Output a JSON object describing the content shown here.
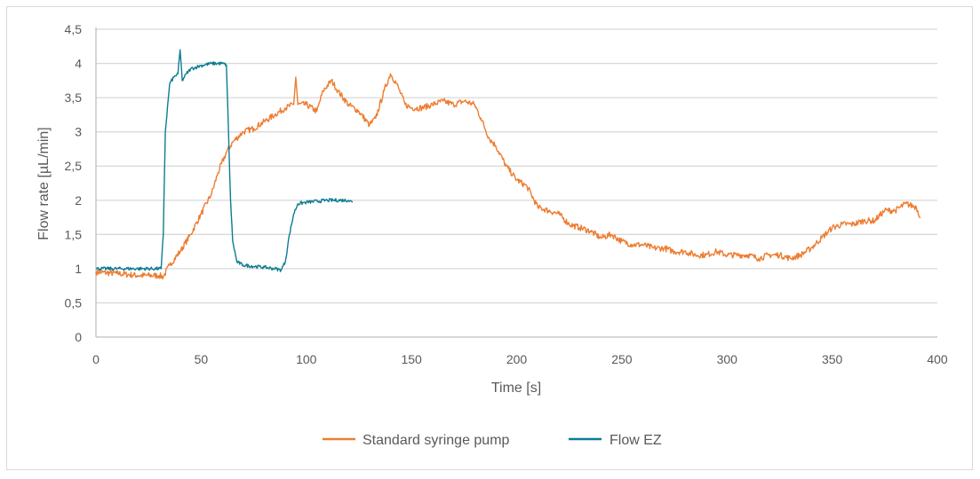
{
  "chart_data": {
    "type": "line",
    "title": "",
    "xlabel": "Time [s]",
    "ylabel": "Flow rate [µL/min]",
    "xlim": [
      0,
      400
    ],
    "ylim": [
      0,
      4.5
    ],
    "xticks": [
      "0",
      "50",
      "100",
      "150",
      "200",
      "250",
      "300",
      "350",
      "400"
    ],
    "yticks": [
      "0",
      "0,5",
      "1",
      "1,5",
      "2",
      "2,5",
      "3",
      "3,5",
      "4",
      "4,5"
    ],
    "grid": "horizontal",
    "legend": "bottom",
    "series": [
      {
        "name": "Standard syringe pump",
        "color": "#ED7D31",
        "x": [
          0,
          10,
          20,
          30,
          32,
          35,
          40,
          45,
          50,
          55,
          58,
          62,
          65,
          70,
          75,
          80,
          85,
          90,
          94,
          95,
          96,
          100,
          105,
          108,
          112,
          115,
          120,
          125,
          130,
          133,
          137,
          140,
          143,
          147,
          150,
          155,
          160,
          165,
          170,
          175,
          180,
          183,
          187,
          190,
          195,
          200,
          205,
          210,
          215,
          220,
          225,
          230,
          235,
          240,
          245,
          250,
          255,
          260,
          265,
          270,
          275,
          280,
          285,
          290,
          295,
          300,
          305,
          310,
          315,
          320,
          325,
          330,
          335,
          340,
          345,
          350,
          355,
          360,
          365,
          370,
          375,
          380,
          385,
          390,
          392
        ],
        "y": [
          0.95,
          0.93,
          0.9,
          0.9,
          0.88,
          1.05,
          1.25,
          1.5,
          1.8,
          2.1,
          2.4,
          2.7,
          2.85,
          3.0,
          3.05,
          3.15,
          3.25,
          3.35,
          3.4,
          3.8,
          3.4,
          3.4,
          3.3,
          3.6,
          3.75,
          3.6,
          3.4,
          3.3,
          3.1,
          3.2,
          3.6,
          3.85,
          3.7,
          3.4,
          3.35,
          3.35,
          3.4,
          3.45,
          3.4,
          3.45,
          3.4,
          3.2,
          2.9,
          2.8,
          2.5,
          2.3,
          2.2,
          1.9,
          1.85,
          1.8,
          1.65,
          1.6,
          1.55,
          1.45,
          1.5,
          1.4,
          1.35,
          1.35,
          1.3,
          1.3,
          1.25,
          1.25,
          1.2,
          1.2,
          1.25,
          1.2,
          1.2,
          1.2,
          1.15,
          1.2,
          1.2,
          1.15,
          1.2,
          1.3,
          1.45,
          1.6,
          1.65,
          1.65,
          1.7,
          1.7,
          1.85,
          1.85,
          1.95,
          1.9,
          1.75
        ]
      },
      {
        "name": "Flow EZ",
        "color": "#0E7C93",
        "x": [
          0,
          10,
          20,
          31,
          32,
          33,
          35,
          37,
          39,
          40,
          41,
          43,
          45,
          50,
          55,
          60,
          62,
          63,
          64,
          65,
          67,
          70,
          80,
          85,
          88,
          90,
          92,
          94,
          96,
          100,
          110,
          120,
          122
        ],
        "y": [
          1.0,
          1.0,
          1.0,
          1.0,
          1.5,
          3.0,
          3.7,
          3.8,
          3.85,
          4.2,
          3.75,
          3.85,
          3.92,
          3.97,
          4.0,
          4.0,
          3.98,
          3.0,
          2.0,
          1.4,
          1.1,
          1.05,
          1.02,
          1.0,
          0.98,
          1.1,
          1.5,
          1.8,
          1.95,
          1.97,
          2.0,
          2.0,
          1.97
        ]
      }
    ]
  }
}
